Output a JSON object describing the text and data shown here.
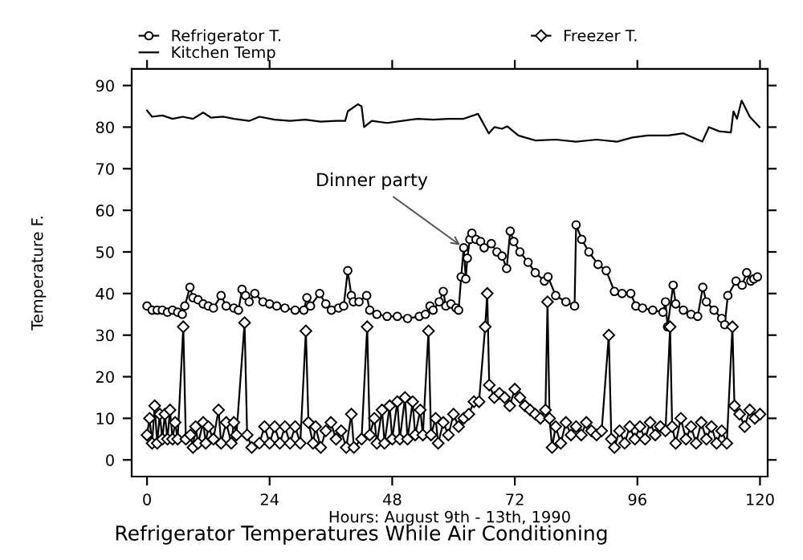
{
  "chart_data": {
    "type": "line",
    "title": "Refrigerator Temperatures While Air Conditioning",
    "xlabel": "Hours: August 9th - 13th, 1990",
    "ylabel": "Temperature F.",
    "xlim": [
      -3,
      121.5
    ],
    "ylim": [
      -4,
      94
    ],
    "xticks": [
      0,
      24,
      48,
      72,
      96,
      120
    ],
    "yticks": [
      0,
      10,
      20,
      30,
      40,
      50,
      60,
      70,
      80,
      90
    ],
    "grid": false,
    "legend": "top left",
    "annotations": [
      {
        "text": "Dinner party",
        "x": 62,
        "y": 51
      }
    ],
    "series": [
      {
        "name": "Refrigerator T.",
        "color": "#000000",
        "marker": "circle",
        "x": [
          0,
          1,
          2,
          3,
          4,
          5,
          6,
          6.9,
          7.4,
          8.4,
          9,
          10,
          11,
          12,
          13,
          14.5,
          15.5,
          17,
          17.9,
          18.6,
          19.3,
          20,
          21.1,
          22.7,
          24,
          25.4,
          27,
          29,
          30.7,
          31.3,
          32,
          33.8,
          35,
          36.1,
          37.5,
          38.5,
          39.3,
          40,
          40.4,
          41.5,
          43,
          43.6,
          45,
          47,
          49,
          51,
          53.3,
          54.5,
          55.4,
          56,
          57.2,
          58,
          58.5,
          59.5,
          60.5,
          61,
          61.5,
          62,
          62.4,
          62.7,
          63.2,
          63.6,
          64.4,
          65.3,
          66,
          67.4,
          68.5,
          69.5,
          70.4,
          71.1,
          71.8,
          73,
          74.6,
          76,
          77.8,
          78.5,
          80,
          82,
          83.7,
          84,
          85.1,
          86.5,
          88.3,
          89.9,
          91.5,
          93,
          94.7,
          95.7,
          97,
          99,
          101,
          101.5,
          101.9,
          103,
          103.5,
          105,
          106.5,
          107.8,
          108.8,
          109.5,
          111,
          112.5,
          113.1,
          113.7,
          115.3,
          116.5,
          117.4,
          118.2,
          118.8,
          119.5
        ],
        "values": [
          37,
          36,
          36,
          36,
          35.5,
          36,
          35.5,
          35,
          37,
          41.5,
          39,
          38.5,
          37.5,
          37,
          36.5,
          39.5,
          37,
          36.5,
          36,
          41,
          39.5,
          38,
          40,
          38,
          37.5,
          37,
          36.5,
          36,
          36,
          39,
          37,
          40,
          37.5,
          36,
          36.5,
          37,
          45.5,
          39.5,
          38,
          38,
          39.5,
          36,
          35,
          34.5,
          34.5,
          34,
          34.5,
          35,
          37,
          36,
          38,
          40.5,
          37,
          37.5,
          36.5,
          36,
          44,
          51,
          43.5,
          48.5,
          53,
          54.5,
          53,
          52.5,
          51,
          52,
          50,
          49,
          46,
          55,
          52.5,
          50,
          47.5,
          45,
          43,
          44,
          39.5,
          38,
          37,
          56.5,
          53,
          50,
          47,
          45.5,
          40.5,
          40,
          40,
          37,
          36.5,
          36,
          35.5,
          38,
          32,
          42,
          37.5,
          36,
          35,
          34.5,
          41.5,
          38,
          36,
          34,
          32.5,
          39.5,
          43,
          42,
          45,
          43,
          43.5,
          44
        ]
      },
      {
        "name": "Kitchen Temp",
        "color": "#000000",
        "marker": "none",
        "x": [
          0,
          1,
          3,
          5,
          7,
          9,
          11,
          12.5,
          15,
          17,
          20,
          22,
          25,
          28,
          31,
          34,
          37,
          38.8,
          39.3,
          41.3,
          42,
          42.5,
          44,
          47,
          50,
          53,
          56,
          59,
          62,
          64.8,
          66.9,
          68,
          69.5,
          70.5,
          72.7,
          74,
          76,
          80,
          84,
          88,
          92,
          95,
          98,
          102,
          105,
          108.7,
          110,
          112,
          114.3,
          114.8,
          115.5,
          116.4,
          118,
          119.9
        ],
        "values": [
          84,
          82.5,
          82.8,
          82,
          82.5,
          82,
          83.5,
          82.3,
          82.5,
          82,
          81.5,
          82.5,
          81.8,
          81.5,
          81.8,
          81.3,
          81.5,
          81.5,
          83.8,
          85.5,
          85,
          80,
          81.5,
          81,
          81.5,
          82,
          81.8,
          82,
          82,
          83.2,
          78.5,
          80,
          79.6,
          80.2,
          78,
          77.5,
          76.8,
          77,
          76.5,
          77,
          76.5,
          77.5,
          78,
          78,
          78.5,
          76.5,
          80,
          79,
          78.7,
          83.8,
          82,
          86.4,
          82.5,
          80
        ]
      },
      {
        "name": "Freezer T.",
        "color": "#000000",
        "marker": "diamond",
        "x": [
          0,
          0.5,
          1,
          1.5,
          2,
          2.5,
          3,
          3.5,
          4,
          4.5,
          5,
          5.5,
          6,
          7.1,
          7.6,
          8.5,
          9,
          9.5,
          10,
          11,
          11.5,
          12,
          13,
          14,
          14.5,
          15.5,
          16.5,
          17,
          17.5,
          19.1,
          19.6,
          20.5,
          22,
          23,
          24,
          25,
          26,
          27,
          28,
          29,
          30,
          31.1,
          31.6,
          32.5,
          33,
          34,
          35,
          36,
          37,
          38,
          39,
          40,
          40.5,
          42,
          43.1,
          43.6,
          44.5,
          45,
          46,
          46.5,
          47.5,
          48,
          49,
          49.5,
          50.5,
          51,
          52,
          52.5,
          53.5,
          54,
          55.1,
          55.6,
          56.5,
          57,
          58,
          59,
          60,
          61,
          62,
          63,
          64,
          65,
          66.2,
          66.6,
          67,
          68,
          69,
          70,
          71,
          72,
          73,
          74,
          75,
          76,
          77,
          78,
          78.4,
          78.8,
          79.3,
          80,
          81,
          82,
          83,
          84,
          85,
          86,
          87,
          88,
          89,
          90.4,
          90.9,
          91.5,
          92.5,
          93.5,
          94.5,
          95.5,
          96.5,
          97.5,
          98.5,
          99.5,
          100.5,
          101.5,
          102.4,
          102.8,
          103.5,
          104.5,
          105.5,
          106.5,
          107.5,
          108.5,
          109.5,
          110.5,
          111.5,
          112.5,
          113.5,
          114.6,
          115,
          116,
          117,
          118,
          119,
          120
        ],
        "values": [
          6,
          10,
          4,
          13,
          4,
          11,
          5,
          11,
          5,
          12,
          5,
          9,
          5,
          32,
          5,
          6,
          3,
          8,
          4,
          9,
          4,
          8,
          5,
          12,
          4,
          9,
          4,
          9,
          6,
          33,
          6,
          3,
          4,
          8,
          4,
          8,
          4,
          8,
          4,
          8,
          4,
          31,
          9,
          4,
          8,
          3,
          7,
          9,
          5,
          7,
          3,
          11,
          3,
          5,
          32,
          6,
          10,
          4,
          12,
          4,
          13,
          5,
          14,
          5,
          15,
          5,
          14,
          6,
          12,
          6,
          31,
          6,
          10,
          4,
          9,
          6,
          11,
          8,
          10,
          11,
          14,
          14,
          32,
          40,
          18,
          15,
          16,
          15,
          13,
          17,
          15,
          13,
          12,
          11,
          10,
          12,
          38,
          10,
          3,
          8,
          4,
          9,
          6,
          8,
          6,
          9,
          7,
          6,
          7,
          30,
          5,
          3,
          7,
          4,
          8,
          5,
          8,
          5,
          9,
          6,
          8,
          7,
          32,
          8,
          4,
          10,
          5,
          8,
          4,
          9,
          5,
          8,
          4,
          7,
          4,
          32,
          13,
          11,
          8,
          12,
          10,
          11
        ]
      }
    ]
  }
}
